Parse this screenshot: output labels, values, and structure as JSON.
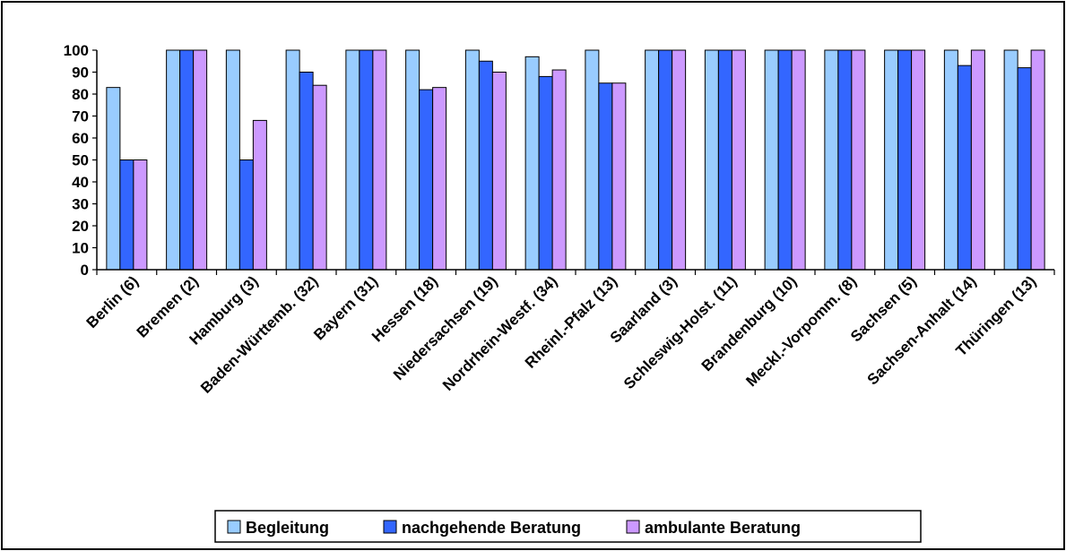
{
  "chart_data": {
    "type": "bar",
    "categories": [
      "Berlin (6)",
      "Bremen (2)",
      "Hamburg (3)",
      "Baden-Württemb. (32)",
      "Bayern (31)",
      "Hessen (18)",
      "Niedersachsen (19)",
      "Nordrhein-Westf. (34)",
      "Rheinl.-Pfalz (13)",
      "Saarland (3)",
      "Schleswig-Holst. (11)",
      "Brandenburg (10)",
      "Meckl.-Vorpomm. (8)",
      "Sachsen (5)",
      "Sachsen-Anhalt (14)",
      "Thüringen (13)"
    ],
    "series": [
      {
        "name": "Begleitung",
        "color": "#99ccff",
        "values": [
          83,
          100,
          100,
          100,
          100,
          100,
          100,
          97,
          100,
          100,
          100,
          100,
          100,
          100,
          100,
          100
        ]
      },
      {
        "name": "nachgehende Beratung",
        "color": "#3366ff",
        "values": [
          50,
          100,
          50,
          90,
          100,
          82,
          95,
          88,
          85,
          100,
          100,
          100,
          100,
          100,
          93,
          92
        ]
      },
      {
        "name": "ambulante Beratung",
        "color": "#cc99ff",
        "values": [
          50,
          100,
          68,
          84,
          100,
          83,
          90,
          91,
          85,
          100,
          100,
          100,
          100,
          100,
          100,
          100
        ]
      }
    ],
    "yticks": [
      "0",
      "10",
      "20",
      "30",
      "40",
      "50",
      "60",
      "70",
      "80",
      "90",
      "100"
    ],
    "ylim": [
      0,
      100
    ],
    "title": "",
    "xlabel": "",
    "ylabel": "",
    "legend_position": "bottom-center",
    "grid": false
  }
}
